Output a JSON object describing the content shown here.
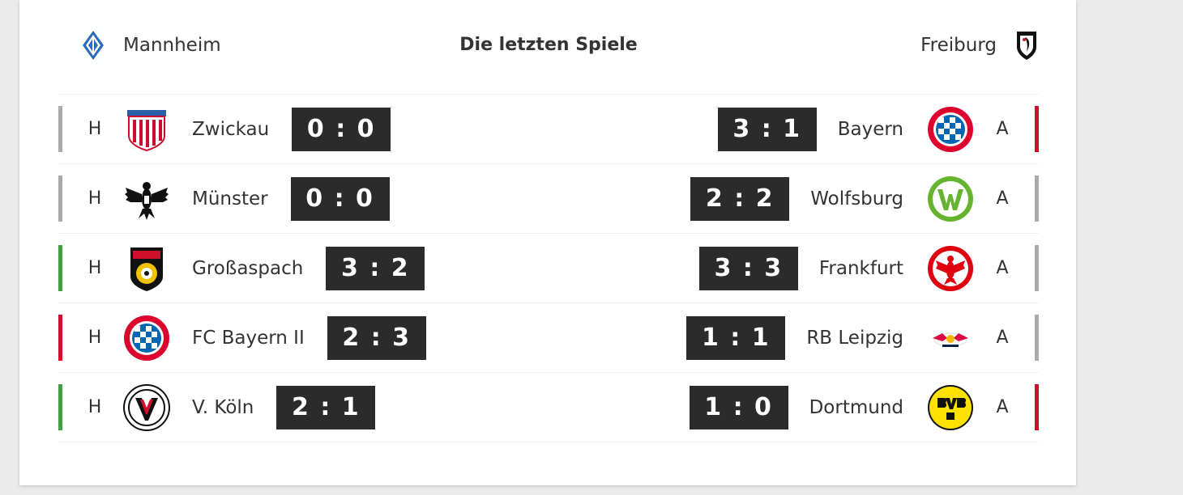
{
  "header": {
    "home_team": "Mannheim",
    "title": "Die letzten Spiele",
    "away_team": "Freiburg"
  },
  "colors": {
    "win": "#43a047",
    "draw": "#aaaaaa",
    "loss": "#d0102a",
    "score_bg": "#2b2b2b"
  },
  "home_matches": [
    {
      "venue": "H",
      "opponent": "Zwickau",
      "score": "0 : 0",
      "result": "draw",
      "logo": "zwickau-crest-icon"
    },
    {
      "venue": "H",
      "opponent": "Münster",
      "score": "0 : 0",
      "result": "draw",
      "logo": "muenster-eagle-icon"
    },
    {
      "venue": "H",
      "opponent": "Großaspach",
      "score": "3 : 2",
      "result": "win",
      "logo": "grossaspach-crest-icon"
    },
    {
      "venue": "H",
      "opponent": "FC Bayern II",
      "score": "2 : 3",
      "result": "loss",
      "logo": "bayern-crest-icon"
    },
    {
      "venue": "H",
      "opponent": "V. Köln",
      "score": "2 : 1",
      "result": "win",
      "logo": "viktoria-koeln-crest-icon"
    }
  ],
  "away_matches": [
    {
      "venue": "A",
      "opponent": "Bayern",
      "score": "3 : 1",
      "result": "loss",
      "logo": "bayern-crest-icon"
    },
    {
      "venue": "A",
      "opponent": "Wolfsburg",
      "score": "2 : 2",
      "result": "draw",
      "logo": "wolfsburg-crest-icon"
    },
    {
      "venue": "A",
      "opponent": "Frankfurt",
      "score": "3 : 3",
      "result": "draw",
      "logo": "frankfurt-eagle-icon"
    },
    {
      "venue": "A",
      "opponent": "RB Leipzig",
      "score": "1 : 1",
      "result": "draw",
      "logo": "rb-leipzig-bulls-icon"
    },
    {
      "venue": "A",
      "opponent": "Dortmund",
      "score": "1 : 0",
      "result": "loss",
      "logo": "bvb-crest-icon"
    }
  ]
}
